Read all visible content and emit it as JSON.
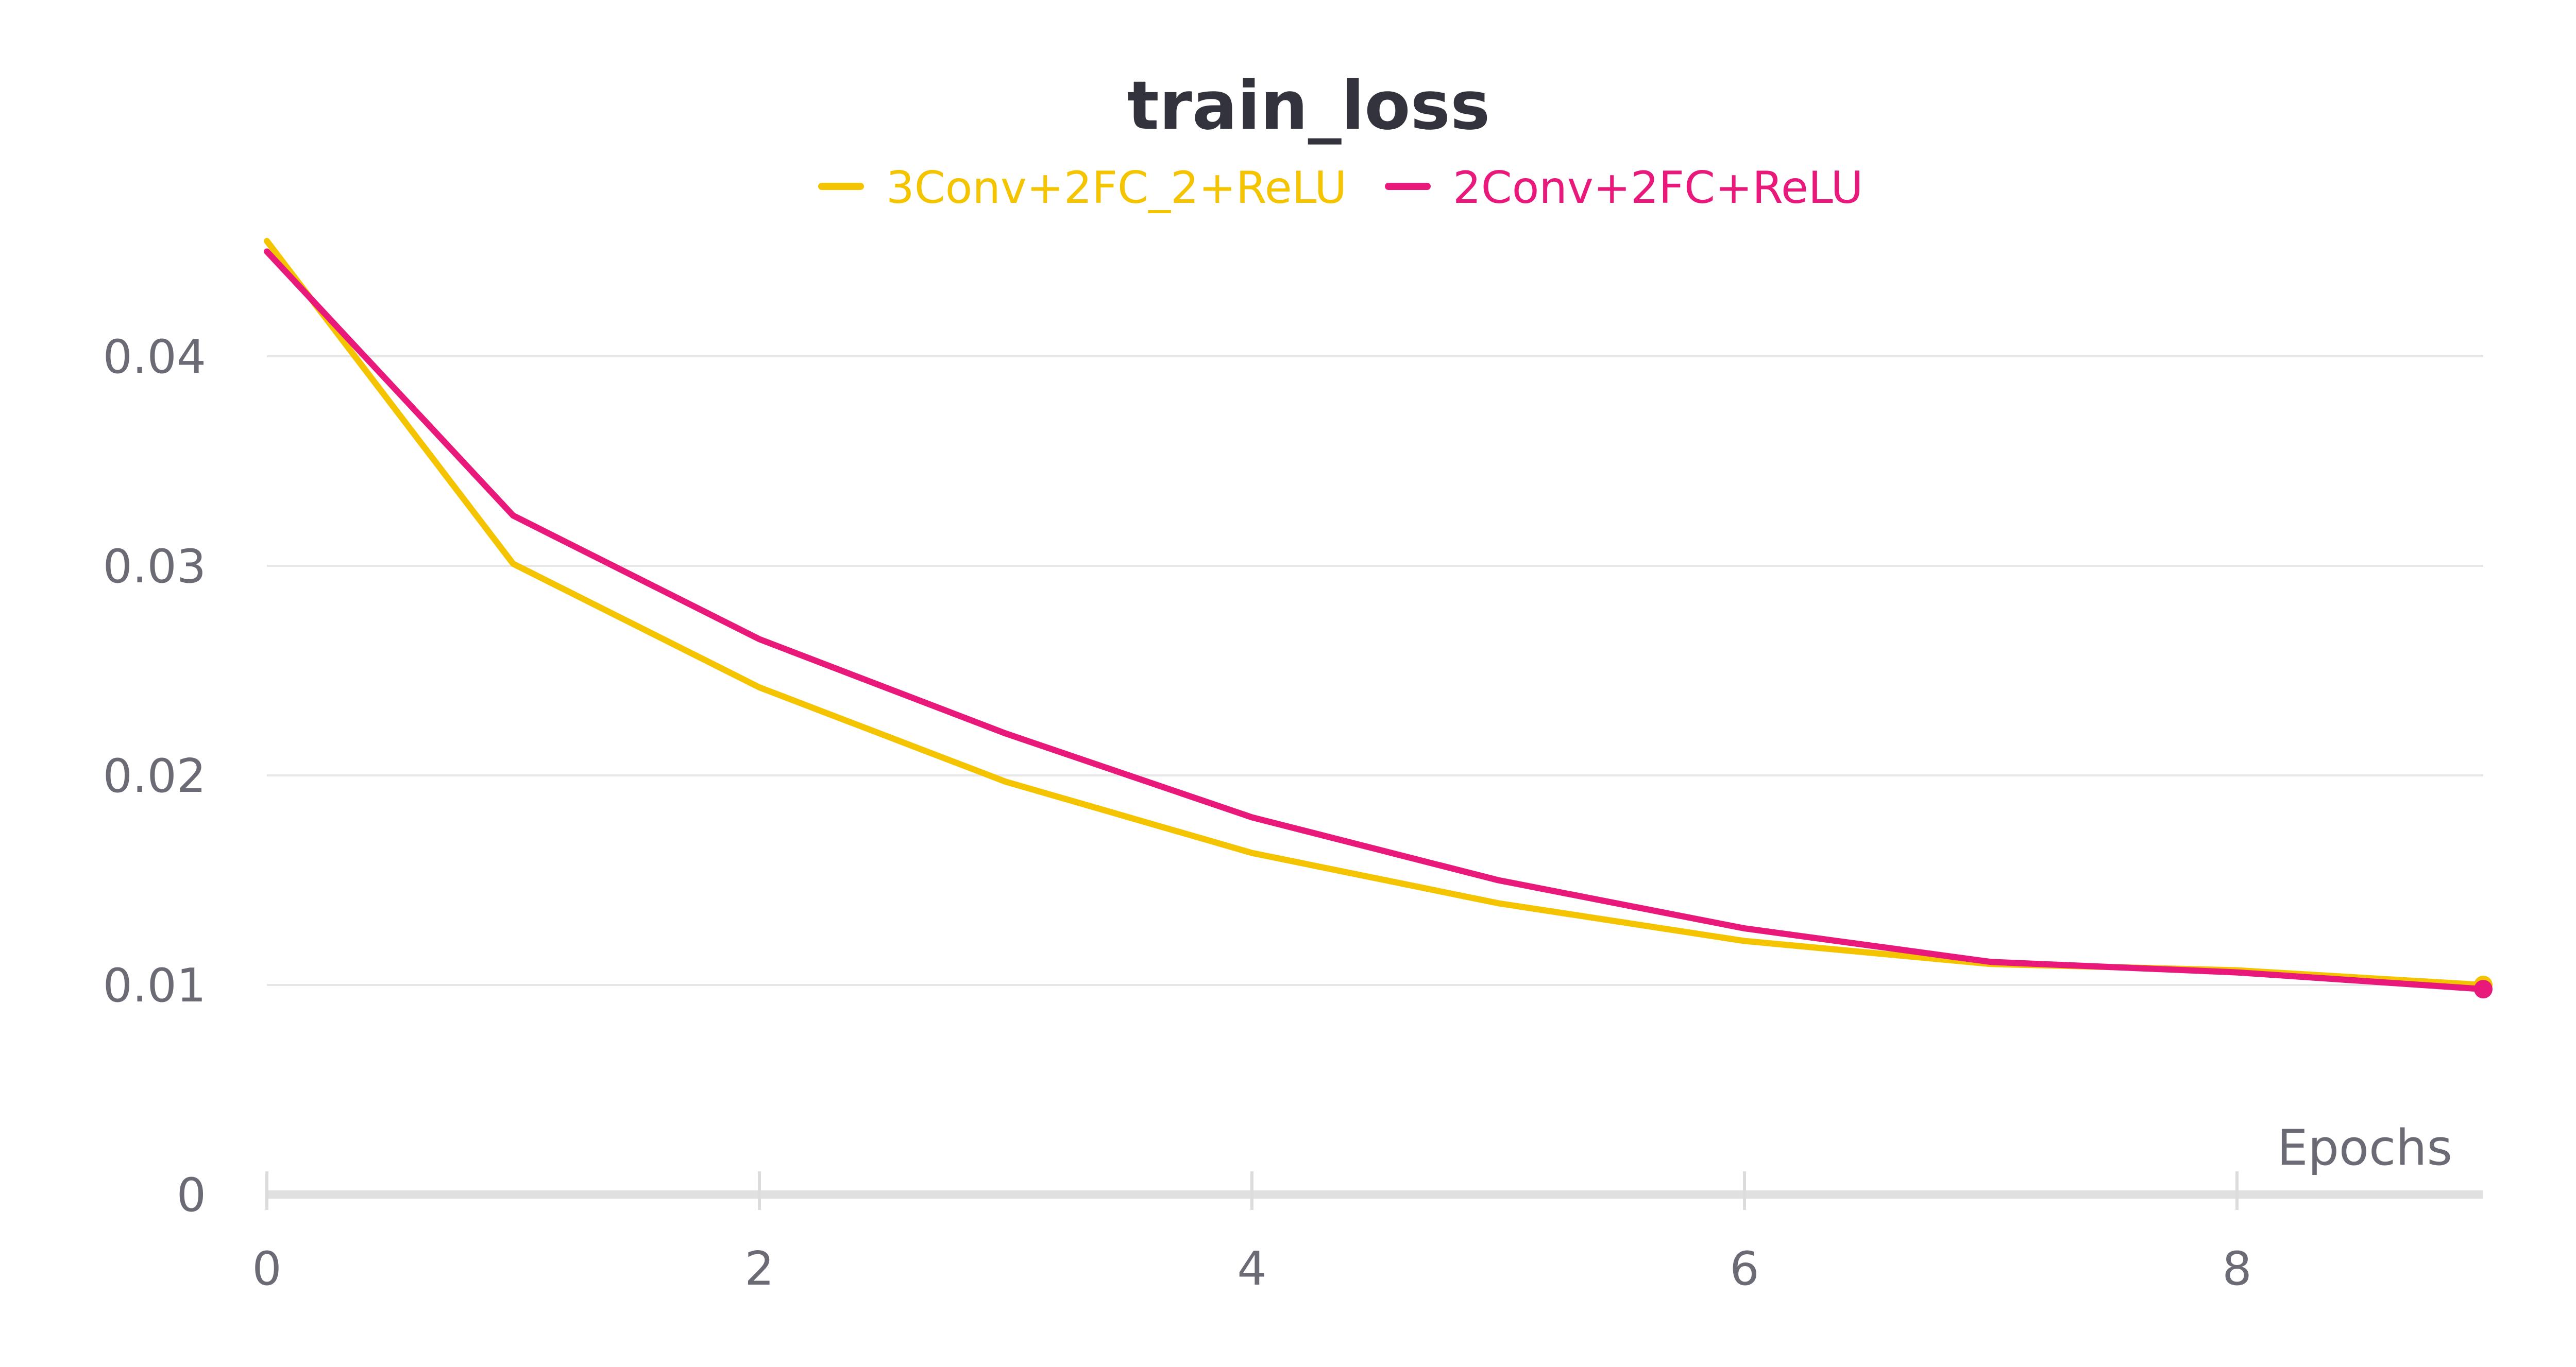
{
  "chart_data": {
    "type": "line",
    "title": "train_loss",
    "xlabel": "Epochs",
    "ylabel": "",
    "xlim": [
      0,
      9
    ],
    "ylim": [
      0,
      0.046
    ],
    "x_ticks": [
      "0",
      "2",
      "4",
      "6",
      "8"
    ],
    "y_ticks": [
      "0",
      "0.01",
      "0.02",
      "0.03",
      "0.04"
    ],
    "grid": true,
    "legend_position": "top-center",
    "x": [
      0,
      1,
      2,
      3,
      4,
      5,
      6,
      7,
      8,
      9
    ],
    "series": [
      {
        "name": "3Conv+2FC_2+ReLU",
        "color": "#f5c400",
        "values": [
          0.0455,
          0.0301,
          0.0242,
          0.0197,
          0.0163,
          0.0139,
          0.0121,
          0.011,
          0.0107,
          0.01
        ]
      },
      {
        "name": "2Conv+2FC+ReLU",
        "color": "#e8197a",
        "values": [
          0.045,
          0.0324,
          0.0265,
          0.022,
          0.018,
          0.015,
          0.0127,
          0.0111,
          0.0106,
          0.0098
        ]
      }
    ]
  }
}
